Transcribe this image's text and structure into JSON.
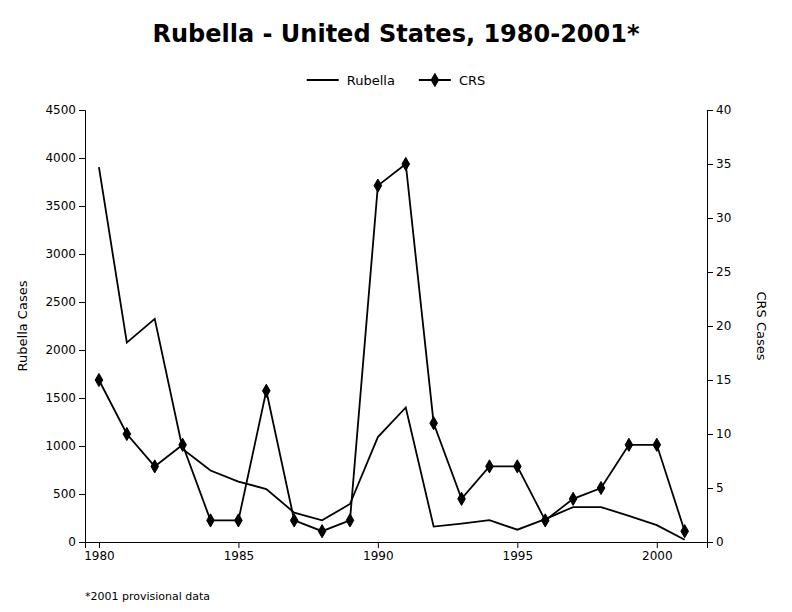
{
  "chart_data": {
    "type": "line",
    "title": "Rubella - United States, 1980-2001*",
    "annotations": [
      "*2001 provisional data"
    ],
    "x": [
      1980,
      1981,
      1982,
      1983,
      1984,
      1985,
      1986,
      1987,
      1988,
      1989,
      1990,
      1991,
      1992,
      1993,
      1994,
      1995,
      1996,
      1997,
      1998,
      1999,
      2000,
      2001
    ],
    "series": [
      {
        "name": "Rubella",
        "color": "#000000",
        "marker": "none",
        "values": [
          3904,
          2077,
          2325,
          970,
          745,
          630,
          551,
          306,
          225,
          396,
          1093,
          1401,
          160,
          192,
          227,
          128,
          238,
          364,
          364,
          272,
          176,
          23
        ]
      },
      {
        "name": "CRS",
        "color": "#000000",
        "marker": "diamond",
        "axis": "y2",
        "values": [
          15,
          10,
          7,
          9,
          2,
          2,
          14,
          2,
          1,
          2,
          33,
          35,
          11,
          4,
          7,
          7,
          2,
          4,
          5,
          9,
          9,
          1
        ]
      }
    ],
    "y_label": "Rubella Cases",
    "y2_label": "CRS Cases",
    "xlim": [
      1979.5,
      2001.8
    ],
    "xticks": [
      1980,
      1985,
      1990,
      1995,
      2000
    ],
    "ylim": [
      0,
      4500
    ],
    "yticks": [
      0,
      500,
      1000,
      1500,
      2000,
      2500,
      3000,
      3500,
      4000,
      4500
    ],
    "y2lim": [
      0,
      40
    ],
    "y2ticks": [
      0,
      5,
      10,
      15,
      20,
      25,
      30,
      35,
      40
    ],
    "legend": "top",
    "grid": false
  }
}
